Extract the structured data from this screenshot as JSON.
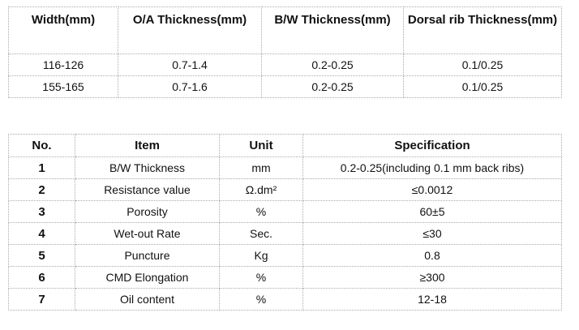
{
  "table1": {
    "header": [
      "Width(mm)",
      "O/A Thickness(mm)",
      "B/W Thickness(mm)",
      "Dorsal rib Thickness(mm)"
    ],
    "rows": [
      [
        "116-126",
        "0.7-1.4",
        "0.2-0.25",
        "0.1/0.25"
      ],
      [
        "155-165",
        "0.7-1.6",
        "0.2-0.25",
        "0.1/0.25"
      ]
    ]
  },
  "table2": {
    "header": [
      "No.",
      "Item",
      "Unit",
      "Specification"
    ],
    "rows": [
      [
        "1",
        "B/W Thickness",
        "mm",
        "0.2-0.25(including 0.1 mm back ribs)"
      ],
      [
        "2",
        "Resistance value",
        "Ω.dm²",
        "≤0.0012"
      ],
      [
        "3",
        "Porosity",
        "%",
        "60±5"
      ],
      [
        "4",
        "Wet-out Rate",
        "Sec.",
        "≤30"
      ],
      [
        "5",
        "Puncture",
        "Kg",
        "0.8"
      ],
      [
        "6",
        "CMD Elongation",
        "%",
        "≥300"
      ],
      [
        "7",
        "Oil content",
        "%",
        "12-18"
      ]
    ]
  }
}
